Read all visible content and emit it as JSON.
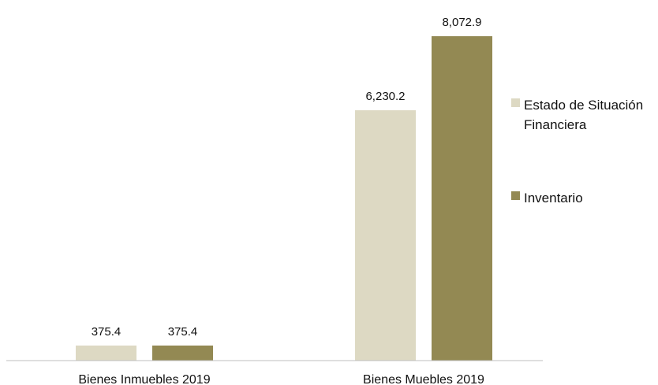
{
  "chart_data": {
    "type": "bar",
    "categories": [
      "Bienes Inmuebles 2019",
      "Bienes Muebles 2019"
    ],
    "series": [
      {
        "name": "Estado de Situación Financiera",
        "values": [
          375.4,
          6230.2
        ],
        "labels": [
          "375.4",
          "6,230.2"
        ]
      },
      {
        "name": "Inventario",
        "values": [
          375.4,
          8072.9
        ],
        "labels": [
          "375.4",
          "8,072.9"
        ]
      }
    ],
    "legend_position": "right",
    "grid": false,
    "ylim": [
      0,
      8500
    ],
    "colors": [
      "#DDD9C3",
      "#938953"
    ]
  }
}
